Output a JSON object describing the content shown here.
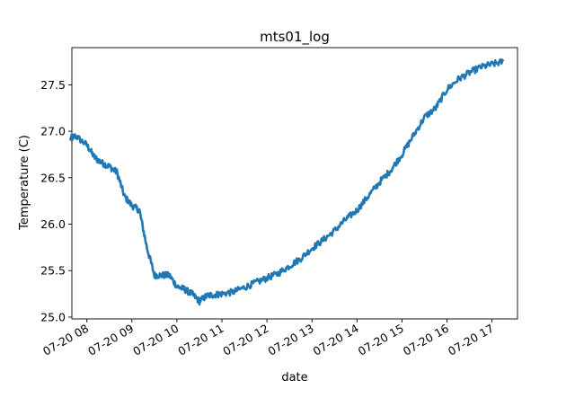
{
  "chart_data": {
    "type": "line",
    "title": "mts01_log",
    "xlabel": "date",
    "ylabel": "Temperature (C)",
    "grid": false,
    "xlim": [
      "07-20 07:40",
      "07-20 17:34"
    ],
    "ylim": [
      24.98,
      27.9
    ],
    "x_ticks": [
      "07-20 08",
      "07-20 09",
      "07-20 10",
      "07-20 11",
      "07-20 12",
      "07-20 13",
      "07-20 14",
      "07-20 15",
      "07-20 16",
      "07-20 17"
    ],
    "y_ticks": [
      "25.0",
      "25.5",
      "26.0",
      "26.5",
      "27.0",
      "27.5"
    ],
    "series": [
      {
        "color": "#1f77b4",
        "x": [
          "07-20 07:38",
          "07-20 07:45",
          "07-20 08:00",
          "07-20 08:10",
          "07-20 08:20",
          "07-20 08:30",
          "07-20 08:40",
          "07-20 08:50",
          "07-20 09:00",
          "07-20 09:10",
          "07-20 09:20",
          "07-20 09:30",
          "07-20 09:40",
          "07-20 09:50",
          "07-20 10:00",
          "07-20 10:10",
          "07-20 10:20",
          "07-20 10:30",
          "07-20 10:40",
          "07-20 10:50",
          "07-20 11:00",
          "07-20 11:15",
          "07-20 11:30",
          "07-20 11:45",
          "07-20 12:00",
          "07-20 12:15",
          "07-20 12:30",
          "07-20 12:45",
          "07-20 13:00",
          "07-20 13:15",
          "07-20 13:30",
          "07-20 13:45",
          "07-20 14:00",
          "07-20 14:15",
          "07-20 14:30",
          "07-20 14:45",
          "07-20 15:00",
          "07-20 15:15",
          "07-20 15:30",
          "07-20 15:45",
          "07-20 16:00",
          "07-20 16:15",
          "07-20 16:30",
          "07-20 16:45",
          "07-20 17:00",
          "07-20 17:15"
        ],
        "y": [
          26.92,
          26.95,
          26.85,
          26.72,
          26.66,
          26.62,
          26.56,
          26.3,
          26.2,
          26.15,
          25.75,
          25.45,
          25.45,
          25.45,
          25.33,
          25.3,
          25.25,
          25.17,
          25.23,
          25.24,
          25.25,
          25.27,
          25.32,
          25.37,
          25.42,
          25.47,
          25.55,
          25.63,
          25.74,
          25.83,
          25.93,
          26.05,
          26.15,
          26.3,
          26.45,
          26.58,
          26.75,
          26.95,
          27.15,
          27.25,
          27.45,
          27.56,
          27.63,
          27.69,
          27.72,
          27.75
        ]
      }
    ]
  }
}
